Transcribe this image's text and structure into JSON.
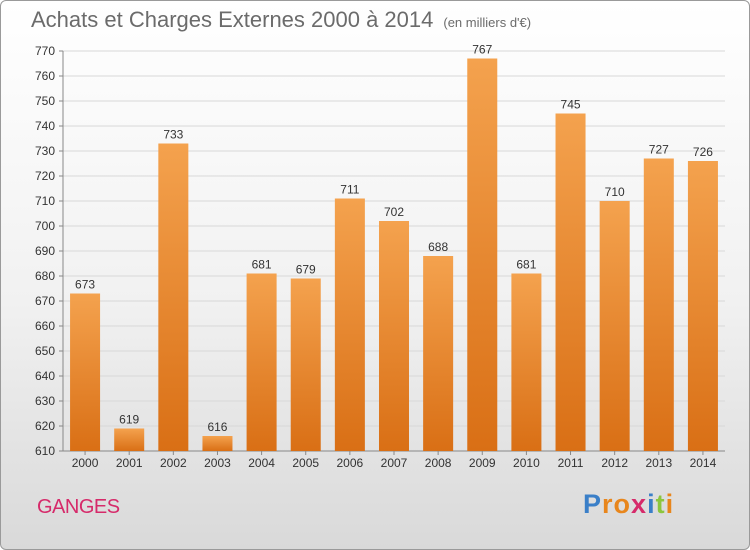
{
  "header": {
    "title": "Achats et Charges Externes 2000 à 2014",
    "subtitle": "(en milliers d'€)"
  },
  "footer": {
    "city": "GANGES",
    "brand": "Proxiti",
    "brand_letters": [
      {
        "ch": "P",
        "color": "#3a7fc8"
      },
      {
        "ch": "r",
        "color": "#e8861c"
      },
      {
        "ch": "o",
        "color": "#e8861c"
      },
      {
        "ch": "x",
        "color": "#d62a6a"
      },
      {
        "ch": "i",
        "color": "#3a7fc8"
      },
      {
        "ch": "t",
        "color": "#8cc63e"
      },
      {
        "ch": "i",
        "color": "#e8861c"
      }
    ]
  },
  "colors": {
    "bar_top": "#f4a24e",
    "bar_bottom": "#d96f15",
    "grid": "#d8d8d8"
  },
  "chart_data": {
    "type": "bar",
    "title": "Achats et Charges Externes 2000 à 2014",
    "subtitle": "(en milliers d'€)",
    "categories": [
      "2000",
      "2001",
      "2002",
      "2003",
      "2004",
      "2005",
      "2006",
      "2007",
      "2008",
      "2009",
      "2010",
      "2011",
      "2012",
      "2013",
      "2014"
    ],
    "values": [
      673,
      619,
      733,
      616,
      681,
      679,
      711,
      702,
      688,
      767,
      681,
      745,
      710,
      727,
      726
    ],
    "ylim": [
      610,
      770
    ],
    "ytick_step": 10,
    "grid": true,
    "legend": false,
    "data_labels": true
  }
}
